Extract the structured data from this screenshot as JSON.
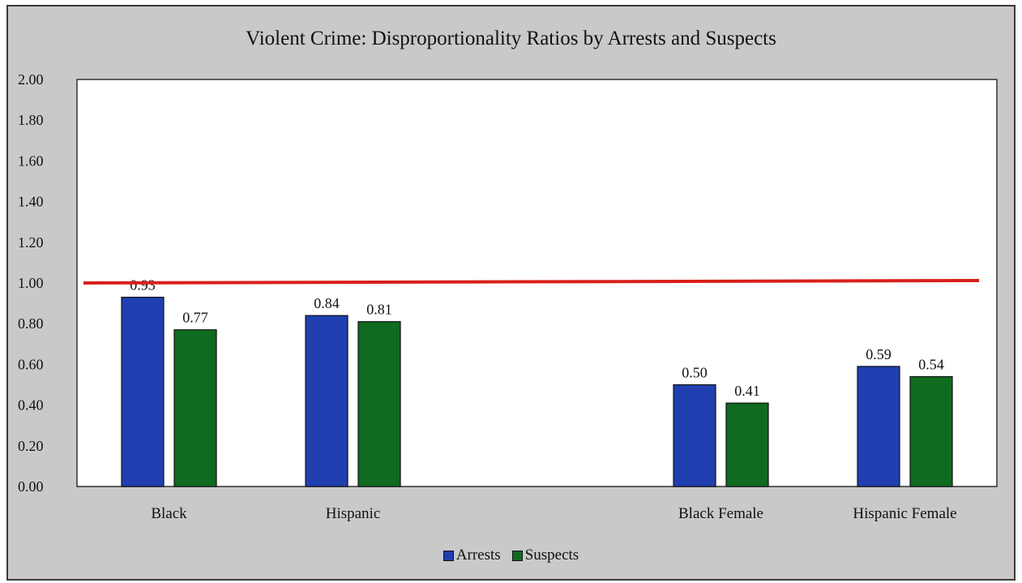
{
  "chart_data": {
    "type": "bar",
    "title": "Violent Crime: Disproportionality Ratios by Arrests and Suspects",
    "categories": [
      "Black",
      "Hispanic",
      "",
      "Black Female",
      "Hispanic Female"
    ],
    "series": [
      {
        "name": "Arrests",
        "color": "#1f3fb0",
        "values": [
          0.93,
          0.84,
          null,
          0.5,
          0.59
        ]
      },
      {
        "name": "Suspects",
        "color": "#0f6b1f",
        "values": [
          0.77,
          0.81,
          null,
          0.41,
          0.54
        ]
      }
    ],
    "data_labels": [
      [
        "0.93",
        "0.84",
        "",
        "0.50",
        "0.59"
      ],
      [
        "0.77",
        "0.81",
        "",
        "0.41",
        "0.54"
      ]
    ],
    "yticks": [
      "0.00",
      "0.20",
      "0.40",
      "0.60",
      "0.80",
      "1.00",
      "1.20",
      "1.40",
      "1.60",
      "1.80",
      "2.00"
    ],
    "ylim": [
      0,
      2
    ],
    "reference_line": {
      "value": 1.0,
      "color": "#d8201a"
    },
    "legend": {
      "position": "bottom"
    },
    "grid": false,
    "xlabel": "",
    "ylabel": ""
  }
}
